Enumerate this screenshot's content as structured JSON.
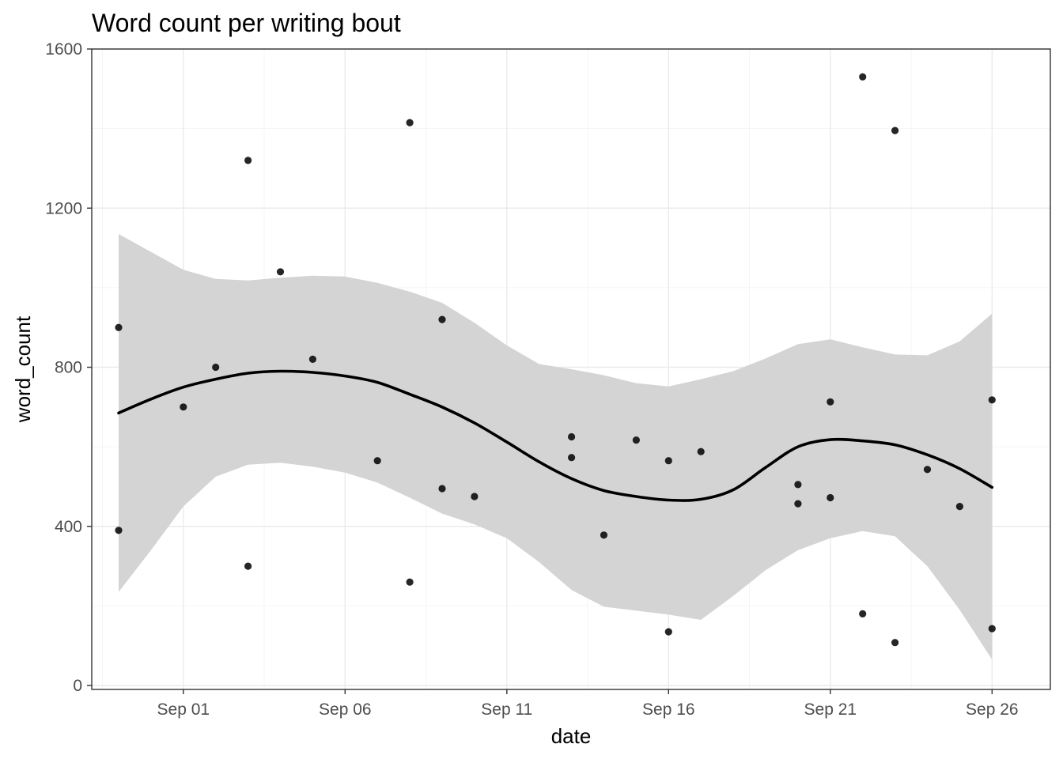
{
  "chart_data": {
    "type": "scatter",
    "title": "Word count per writing bout",
    "xlabel": "date",
    "ylabel": "word_count",
    "x_axis": {
      "kind": "date",
      "range": [
        "2021-08-28",
        "2021-09-27"
      ],
      "ticks": [
        {
          "value": "2021-09-01",
          "label": "Sep 01"
        },
        {
          "value": "2021-09-06",
          "label": "Sep 06"
        },
        {
          "value": "2021-09-11",
          "label": "Sep 11"
        },
        {
          "value": "2021-09-16",
          "label": "Sep 16"
        },
        {
          "value": "2021-09-21",
          "label": "Sep 21"
        },
        {
          "value": "2021-09-26",
          "label": "Sep 26"
        }
      ]
    },
    "y_axis": {
      "range": [
        0,
        1600
      ],
      "ticks": [
        {
          "value": 0,
          "label": "0"
        },
        {
          "value": 400,
          "label": "400"
        },
        {
          "value": 800,
          "label": "800"
        },
        {
          "value": 1200,
          "label": "1200"
        },
        {
          "value": 1600,
          "label": "1600"
        }
      ]
    },
    "grid": true,
    "theme": "bw",
    "point_color": "#000000",
    "smooth_line_color": "#000000",
    "ribbon_color": "#d4d4d4",
    "points": [
      {
        "x": "2021-08-30",
        "y": 900
      },
      {
        "x": "2021-08-30",
        "y": 390
      },
      {
        "x": "2021-09-01",
        "y": 700
      },
      {
        "x": "2021-09-02",
        "y": 800
      },
      {
        "x": "2021-09-03",
        "y": 1320
      },
      {
        "x": "2021-09-03",
        "y": 300
      },
      {
        "x": "2021-09-04",
        "y": 1040
      },
      {
        "x": "2021-09-05",
        "y": 820
      },
      {
        "x": "2021-09-07",
        "y": 565
      },
      {
        "x": "2021-09-08",
        "y": 1415
      },
      {
        "x": "2021-09-08",
        "y": 260
      },
      {
        "x": "2021-09-09",
        "y": 920
      },
      {
        "x": "2021-09-09",
        "y": 495
      },
      {
        "x": "2021-09-10",
        "y": 475
      },
      {
        "x": "2021-09-13",
        "y": 625
      },
      {
        "x": "2021-09-13",
        "y": 573
      },
      {
        "x": "2021-09-14",
        "y": 378
      },
      {
        "x": "2021-09-15",
        "y": 617
      },
      {
        "x": "2021-09-16",
        "y": 565
      },
      {
        "x": "2021-09-16",
        "y": 135
      },
      {
        "x": "2021-09-17",
        "y": 588
      },
      {
        "x": "2021-09-20",
        "y": 505
      },
      {
        "x": "2021-09-20",
        "y": 457
      },
      {
        "x": "2021-09-21",
        "y": 713
      },
      {
        "x": "2021-09-21",
        "y": 472
      },
      {
        "x": "2021-09-22",
        "y": 1530
      },
      {
        "x": "2021-09-22",
        "y": 180
      },
      {
        "x": "2021-09-23",
        "y": 1395
      },
      {
        "x": "2021-09-23",
        "y": 108
      },
      {
        "x": "2021-09-24",
        "y": 543
      },
      {
        "x": "2021-09-25",
        "y": 450
      },
      {
        "x": "2021-09-26",
        "y": 718
      },
      {
        "x": "2021-09-26",
        "y": 143
      }
    ],
    "smooth": [
      {
        "x": "2021-08-30",
        "y": 685,
        "ymin": 235,
        "ymax": 1135
      },
      {
        "x": "2021-08-31",
        "y": 720,
        "ymin": 340,
        "ymax": 1090
      },
      {
        "x": "2021-09-01",
        "y": 750,
        "ymin": 450,
        "ymax": 1045
      },
      {
        "x": "2021-09-02",
        "y": 770,
        "ymin": 525,
        "ymax": 1022
      },
      {
        "x": "2021-09-03",
        "y": 785,
        "ymin": 555,
        "ymax": 1018
      },
      {
        "x": "2021-09-04",
        "y": 790,
        "ymin": 560,
        "ymax": 1025
      },
      {
        "x": "2021-09-05",
        "y": 787,
        "ymin": 550,
        "ymax": 1030
      },
      {
        "x": "2021-09-06",
        "y": 778,
        "ymin": 535,
        "ymax": 1028
      },
      {
        "x": "2021-09-07",
        "y": 762,
        "ymin": 510,
        "ymax": 1012
      },
      {
        "x": "2021-09-08",
        "y": 732,
        "ymin": 472,
        "ymax": 990
      },
      {
        "x": "2021-09-09",
        "y": 700,
        "ymin": 432,
        "ymax": 962
      },
      {
        "x": "2021-09-10",
        "y": 660,
        "ymin": 405,
        "ymax": 912
      },
      {
        "x": "2021-09-11",
        "y": 612,
        "ymin": 370,
        "ymax": 855
      },
      {
        "x": "2021-09-12",
        "y": 562,
        "ymin": 310,
        "ymax": 808
      },
      {
        "x": "2021-09-13",
        "y": 520,
        "ymin": 240,
        "ymax": 795
      },
      {
        "x": "2021-09-14",
        "y": 490,
        "ymin": 198,
        "ymax": 780
      },
      {
        "x": "2021-09-15",
        "y": 475,
        "ymin": 188,
        "ymax": 760
      },
      {
        "x": "2021-09-16",
        "y": 466,
        "ymin": 178,
        "ymax": 752
      },
      {
        "x": "2021-09-17",
        "y": 468,
        "ymin": 165,
        "ymax": 770
      },
      {
        "x": "2021-09-18",
        "y": 492,
        "ymin": 225,
        "ymax": 790
      },
      {
        "x": "2021-09-19",
        "y": 548,
        "ymin": 290,
        "ymax": 822
      },
      {
        "x": "2021-09-20",
        "y": 600,
        "ymin": 340,
        "ymax": 858
      },
      {
        "x": "2021-09-21",
        "y": 618,
        "ymin": 370,
        "ymax": 870
      },
      {
        "x": "2021-09-22",
        "y": 615,
        "ymin": 388,
        "ymax": 850
      },
      {
        "x": "2021-09-23",
        "y": 605,
        "ymin": 375,
        "ymax": 832
      },
      {
        "x": "2021-09-24",
        "y": 580,
        "ymin": 300,
        "ymax": 830
      },
      {
        "x": "2021-09-25",
        "y": 545,
        "ymin": 190,
        "ymax": 865
      },
      {
        "x": "2021-09-26",
        "y": 498,
        "ymin": 65,
        "ymax": 935
      }
    ]
  }
}
